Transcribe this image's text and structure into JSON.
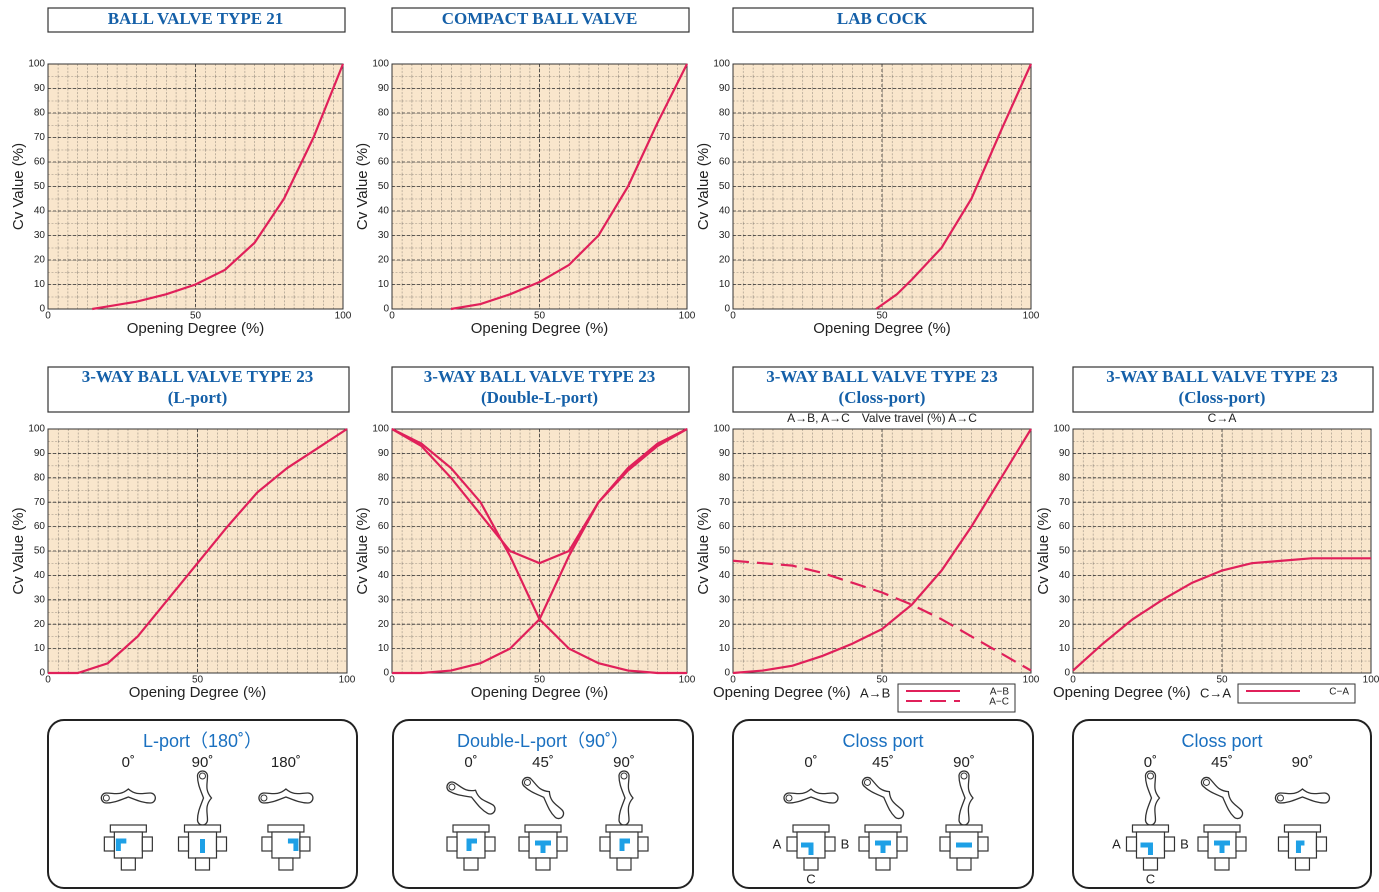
{
  "chart_data": [
    {
      "type": "line",
      "title": "BALL VALVE TYPE 21",
      "xlabel": "Opening Degree (%)",
      "ylabel": "Cv Value (%)",
      "x": [
        15,
        20,
        30,
        40,
        50,
        60,
        70,
        80,
        90,
        100
      ],
      "series": [
        {
          "color": "#e0205a",
          "values": [
            0,
            1,
            3,
            6,
            10,
            16,
            27,
            45,
            70,
            100
          ]
        }
      ],
      "xlim": [
        0,
        100
      ],
      "ylim": [
        0,
        100
      ],
      "xticks": [
        0,
        50,
        100
      ],
      "yticks": [
        0,
        10,
        20,
        30,
        40,
        50,
        60,
        70,
        80,
        90,
        100
      ],
      "grid": true
    },
    {
      "type": "line",
      "title": "COMPACT BALL VALVE",
      "xlabel": "Opening Degree (%)",
      "ylabel": "Cv Value (%)",
      "x": [
        20,
        30,
        40,
        50,
        60,
        70,
        80,
        90,
        100
      ],
      "series": [
        {
          "color": "#e0205a",
          "values": [
            0,
            2,
            6,
            11,
            18,
            30,
            50,
            76,
            100
          ]
        }
      ],
      "xlim": [
        0,
        100
      ],
      "ylim": [
        0,
        100
      ],
      "xticks": [
        0,
        50,
        100
      ],
      "yticks": [
        0,
        10,
        20,
        30,
        40,
        50,
        60,
        70,
        80,
        90,
        100
      ],
      "grid": true
    },
    {
      "type": "line",
      "title": "LAB COCK",
      "xlabel": "Opening Degree (%)",
      "ylabel": "Cv Value (%)",
      "x": [
        48,
        55,
        60,
        70,
        80,
        90,
        100
      ],
      "series": [
        {
          "color": "#e0205a",
          "values": [
            0,
            6,
            12,
            25,
            45,
            73,
            100
          ]
        }
      ],
      "xlim": [
        0,
        100
      ],
      "ylim": [
        0,
        100
      ],
      "xticks": [
        0,
        50,
        100
      ],
      "yticks": [
        0,
        10,
        20,
        30,
        40,
        50,
        60,
        70,
        80,
        90,
        100
      ],
      "grid": true
    },
    {
      "type": "line",
      "title": "3-WAY BALL VALVE TYPE 23",
      "subtitle": "(L-port)",
      "xlabel": "Opening Degree (%)",
      "ylabel": "Cv Value (%)",
      "x": [
        0,
        10,
        20,
        30,
        40,
        50,
        60,
        70,
        80,
        90,
        100
      ],
      "series": [
        {
          "color": "#e0205a",
          "values": [
            0,
            0,
            4,
            15,
            30,
            45,
            60,
            74,
            84,
            92,
            100
          ]
        }
      ],
      "xlim": [
        0,
        100
      ],
      "ylim": [
        0,
        100
      ],
      "xticks": [
        0,
        50,
        100
      ],
      "yticks": [
        0,
        10,
        20,
        30,
        40,
        50,
        60,
        70,
        80,
        90,
        100
      ],
      "grid": true
    },
    {
      "type": "line",
      "title": "3-WAY BALL VALVE TYPE 23",
      "subtitle": "(Double-L-port)",
      "xlabel": "Opening Degree (%)",
      "ylabel": "Cv Value (%)",
      "x": [
        0,
        10,
        20,
        30,
        40,
        50,
        60,
        70,
        80,
        90,
        100
      ],
      "series": [
        {
          "color": "#e0205a",
          "values": [
            100,
            93,
            80,
            65,
            50,
            45,
            50,
            70,
            83,
            93,
            100
          ]
        },
        {
          "color": "#e0205a",
          "values": [
            100,
            94,
            84,
            70,
            48,
            22,
            10,
            4,
            1,
            0,
            0
          ]
        },
        {
          "color": "#e0205a",
          "values": [
            0,
            0,
            1,
            4,
            10,
            22,
            48,
            70,
            84,
            94,
            100
          ]
        }
      ],
      "xlim": [
        0,
        100
      ],
      "ylim": [
        0,
        100
      ],
      "xticks": [
        0,
        50,
        100
      ],
      "yticks": [
        0,
        10,
        20,
        30,
        40,
        50,
        60,
        70,
        80,
        90,
        100
      ],
      "grid": true
    },
    {
      "type": "line",
      "title": "3-WAY BALL VALVE TYPE 23",
      "subtitle": "(Closs-port)",
      "top_note": "A→B, A→C　Valve travel (%) A→C",
      "xlabel": "Opening Degree (%)",
      "x_suffix": "A→B",
      "ylabel": "Cv Value (%)",
      "x": [
        0,
        10,
        20,
        30,
        40,
        50,
        60,
        70,
        80,
        90,
        100
      ],
      "series": [
        {
          "name": "A−B",
          "color": "#e0205a",
          "dashed": false,
          "values": [
            0,
            1,
            3,
            7,
            12,
            18,
            28,
            42,
            60,
            80,
            100
          ]
        },
        {
          "name": "A−C",
          "color": "#e0205a",
          "dashed": true,
          "values": [
            46,
            45,
            44,
            41,
            37,
            33,
            28,
            22,
            15,
            8,
            1
          ]
        }
      ],
      "xlim": [
        0,
        100
      ],
      "ylim": [
        0,
        100
      ],
      "xticks": [
        0,
        50,
        100
      ],
      "yticks": [
        0,
        10,
        20,
        30,
        40,
        50,
        60,
        70,
        80,
        90,
        100
      ],
      "grid": true,
      "legend": "bottom-right"
    },
    {
      "type": "line",
      "title": "3-WAY BALL VALVE TYPE 23",
      "subtitle": "(Closs-port)",
      "top_note": "C→A",
      "xlabel": "Opening Degree (%)",
      "x_suffix": "C→A",
      "ylabel": "Cv Value (%)",
      "x": [
        0,
        10,
        20,
        30,
        40,
        50,
        60,
        70,
        80,
        90,
        100
      ],
      "series": [
        {
          "name": "C−A",
          "color": "#e0205a",
          "dashed": false,
          "values": [
            1,
            12,
            22,
            30,
            37,
            42,
            45,
            46,
            47,
            47,
            47
          ]
        }
      ],
      "xlim": [
        0,
        100
      ],
      "ylim": [
        0,
        100
      ],
      "xticks": [
        0,
        50,
        100
      ],
      "yticks": [
        0,
        10,
        20,
        30,
        40,
        50,
        60,
        70,
        80,
        90,
        100
      ],
      "grid": true,
      "legend": "bottom-right"
    }
  ],
  "port_diagrams": [
    {
      "title": "L-port（180˚）",
      "angles": [
        "0˚",
        "90˚",
        "180˚"
      ]
    },
    {
      "title": "Double-L-port（90˚）",
      "angles": [
        "0˚",
        "45˚",
        "90˚"
      ]
    },
    {
      "title": "Closs port",
      "angles": [
        "0˚",
        "45˚",
        "90˚"
      ],
      "ports": [
        "A",
        "B",
        "C"
      ]
    },
    {
      "title": "Closs port",
      "angles": [
        "0˚",
        "45˚",
        "90˚"
      ],
      "ports": [
        "A",
        "B",
        "C"
      ]
    }
  ]
}
